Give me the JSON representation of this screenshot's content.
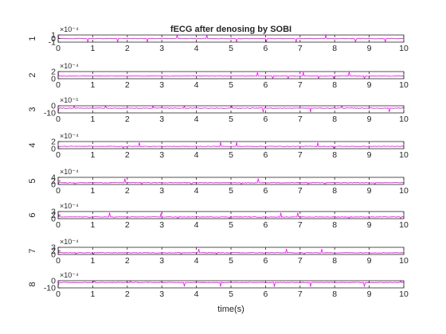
{
  "figure": {
    "background": "#ffffff",
    "axes_color": "#262626"
  },
  "chart_data": {
    "type": "line",
    "title": "fECG after denosing by SOBI",
    "xlabel": "time(s)",
    "xlim": [
      0,
      10
    ],
    "x_ticks": [
      "0",
      "1",
      "2",
      "3",
      "4",
      "5",
      "6",
      "7",
      "8",
      "9",
      "10"
    ],
    "line_color": "#ff00ff",
    "grid": false,
    "legend": "none",
    "channels": [
      {
        "label": "1",
        "exponent_label": "×10⁻⁴",
        "y_ticks": [
          "-1",
          "0",
          "1"
        ],
        "ylim": [
          -1.2,
          1.2
        ]
      },
      {
        "label": "2",
        "exponent_label": "×10⁻⁴",
        "y_ticks": [
          "0",
          "2"
        ],
        "ylim": [
          -1.5,
          2.5
        ]
      },
      {
        "label": "3",
        "exponent_label": "×10⁻⁵",
        "y_ticks": [
          "-10",
          "0"
        ],
        "ylim": [
          -12,
          6
        ]
      },
      {
        "label": "4",
        "exponent_label": "×10⁻⁴",
        "y_ticks": [
          "0",
          "2"
        ],
        "ylim": [
          -1.2,
          2.5
        ]
      },
      {
        "label": "5",
        "exponent_label": "×10⁻⁴",
        "y_ticks": [
          "0",
          "2",
          "4"
        ],
        "ylim": [
          -1.5,
          4.5
        ]
      },
      {
        "label": "6",
        "exponent_label": "×10⁻⁴",
        "y_ticks": [
          "0",
          "2",
          "3"
        ],
        "ylim": [
          -1.0,
          3.2
        ]
      },
      {
        "label": "7",
        "exponent_label": "×10⁻⁴",
        "y_ticks": [
          "0",
          "2",
          "3"
        ],
        "ylim": [
          -1.0,
          3.2
        ]
      },
      {
        "label": "8",
        "exponent_label": "×10⁻⁴",
        "y_ticks": [
          "-10",
          "0"
        ],
        "ylim": [
          -12,
          4
        ]
      }
    ]
  }
}
